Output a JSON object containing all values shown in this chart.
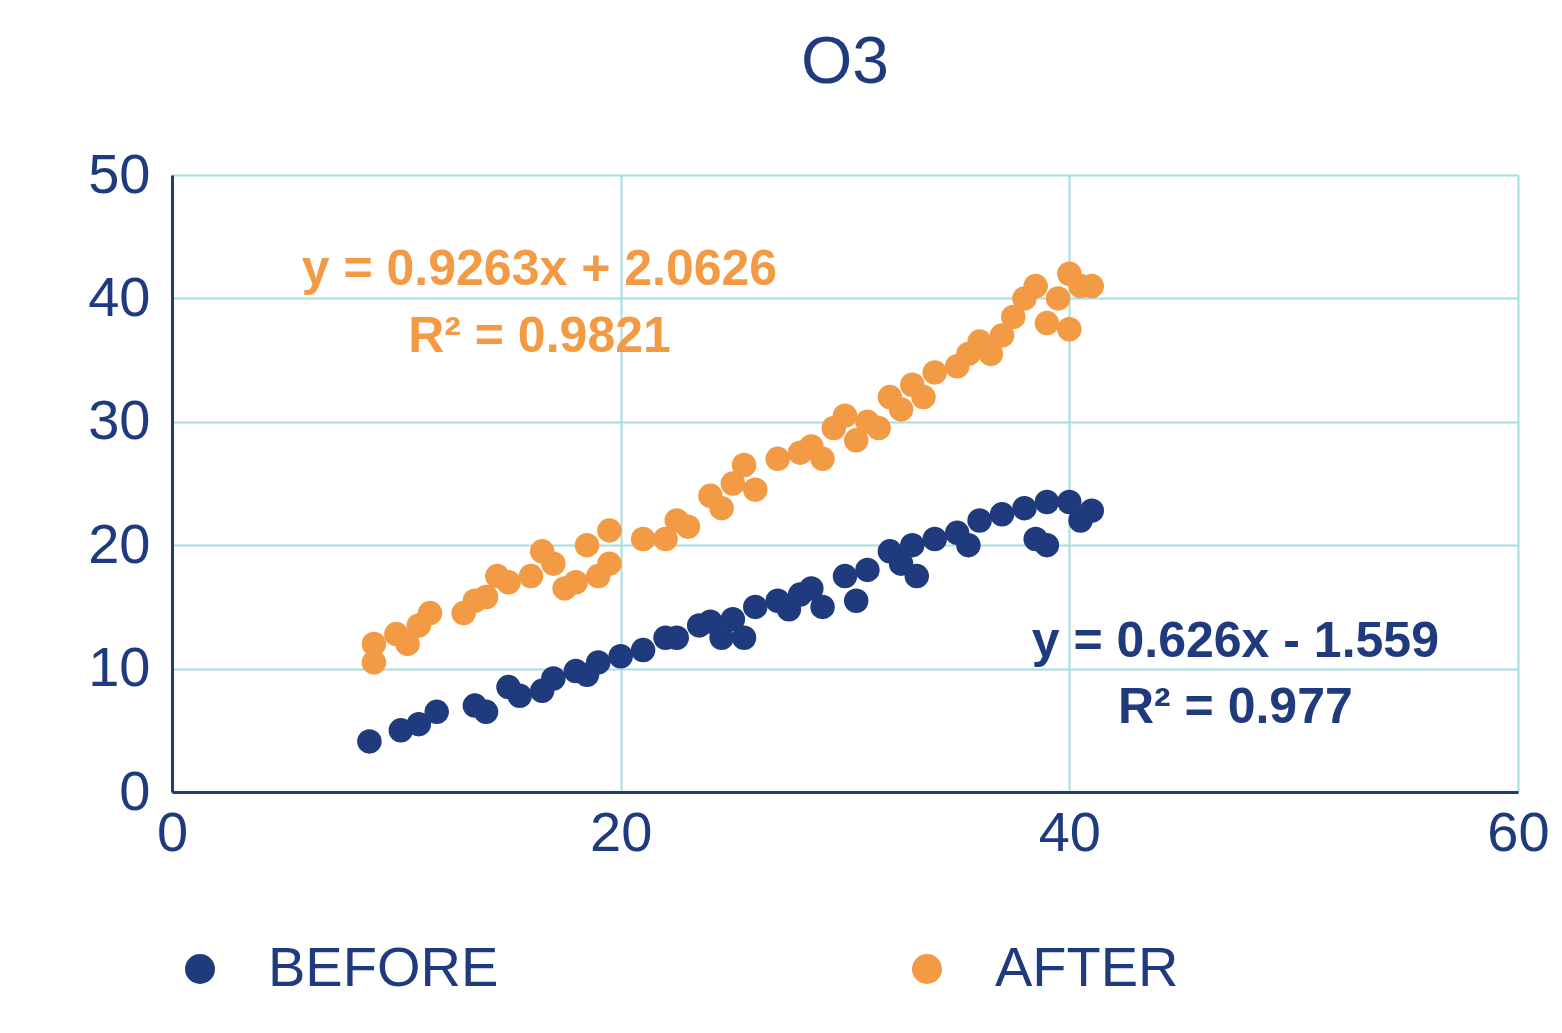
{
  "chart_data": {
    "type": "scatter",
    "title": "O3",
    "xlim": [
      0,
      60
    ],
    "ylim": [
      0,
      50
    ],
    "xticks": [
      0,
      20,
      40,
      60
    ],
    "yticks": [
      0,
      10,
      20,
      30,
      40,
      50
    ],
    "grid": true,
    "legend": "bottom",
    "marker": "circle",
    "series": [
      {
        "name": "BEFORE",
        "color": "#1f3a7d",
        "x": [
          8.8,
          10.2,
          11,
          11.8,
          13.5,
          14,
          15,
          15.5,
          16.5,
          17,
          18,
          18.5,
          19,
          20,
          21,
          22,
          22.5,
          23.5,
          24,
          24.5,
          25,
          25.5,
          26,
          27,
          27.5,
          28,
          28.5,
          29,
          30,
          30.5,
          31,
          32,
          32.5,
          33,
          33.2,
          34,
          35,
          35.5,
          36,
          37,
          38,
          38.5,
          39,
          39,
          40,
          40.5,
          41
        ],
        "values": [
          4.1,
          5,
          5.5,
          6.5,
          7,
          6.5,
          8.5,
          7.8,
          8.2,
          9.2,
          9.8,
          9.5,
          10.5,
          11,
          11.5,
          12.5,
          12.5,
          13.5,
          13.8,
          12.5,
          14,
          12.5,
          15,
          15.5,
          14.8,
          16,
          16.5,
          15,
          17.5,
          15.5,
          18,
          19.5,
          18.5,
          20,
          17.5,
          20.5,
          21,
          20,
          22,
          22.5,
          23,
          20.5,
          20,
          23.5,
          23.5,
          22,
          22.8
        ]
      },
      {
        "name": "AFTER",
        "color": "#f39a45",
        "x": [
          9,
          9,
          10,
          10.5,
          11,
          11.5,
          13,
          13.5,
          14,
          14.5,
          15,
          16,
          16.5,
          17,
          17.5,
          18,
          18.5,
          19,
          19.5,
          19.5,
          21,
          22,
          22.5,
          23,
          24,
          24.5,
          25,
          25.5,
          26,
          27,
          28,
          28.5,
          29,
          29.5,
          30,
          30.5,
          31,
          31.5,
          32,
          32.5,
          33,
          33.5,
          34,
          35,
          35.5,
          36,
          36.5,
          37,
          37.5,
          38,
          38.5,
          39,
          39.5,
          40,
          40,
          40.5,
          41
        ],
        "values": [
          12,
          10.5,
          12.8,
          12,
          13.5,
          14.5,
          14.5,
          15.5,
          15.8,
          17.5,
          17,
          17.5,
          19.5,
          18.5,
          16.5,
          17,
          20,
          17.5,
          21.2,
          18.5,
          20.5,
          20.5,
          22,
          21.5,
          24,
          23,
          25,
          26.5,
          24.5,
          27,
          27.5,
          28,
          27,
          29.5,
          30.5,
          28.5,
          30,
          29.5,
          32,
          31,
          33,
          32,
          34,
          34.5,
          35.5,
          36.5,
          35.5,
          37,
          38.5,
          40,
          41,
          38,
          40,
          37.5,
          42,
          41,
          41
        ]
      }
    ],
    "annotations": [
      "y = 0.626x - 1.559",
      "R² = 0.977",
      "y = 0.9263x + 2.0626",
      "R² = 0.9821"
    ]
  }
}
